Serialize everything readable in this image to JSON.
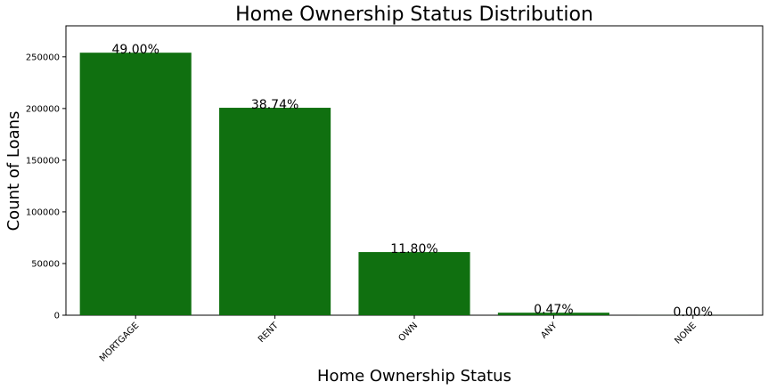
{
  "chart_data": {
    "type": "bar",
    "title": "Home Ownership Status Distribution",
    "x_label": "Home Ownership Status",
    "y_label": "Count of Loans",
    "categories": [
      "MORTGAGE",
      "RENT",
      "OWN",
      "ANY",
      "NONE"
    ],
    "values": [
      254000,
      200700,
      61100,
      2430,
      50
    ],
    "percent_labels": [
      "49.00%",
      "38.74%",
      "11.80%",
      "0.47%",
      "0.00%"
    ],
    "color": "#107010",
    "ylim": [
      0,
      280000
    ],
    "yticks": [
      0,
      50000,
      100000,
      150000,
      200000,
      250000
    ],
    "grid": false
  }
}
